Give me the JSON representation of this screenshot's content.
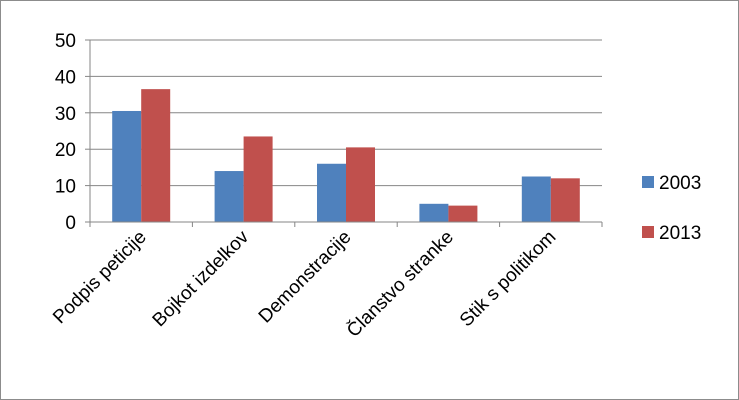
{
  "chart_data": {
    "type": "bar",
    "categories": [
      "Podpis peticije",
      "Bojkot izdelkov",
      "Demonstracije",
      "Članstvo stranke",
      "Stik s politikom"
    ],
    "series": [
      {
        "name": "2003",
        "color": "#4f81bd",
        "values": [
          30.5,
          14,
          16,
          5,
          12.5
        ]
      },
      {
        "name": "2013",
        "color": "#c0504d",
        "values": [
          36.5,
          23.5,
          20.5,
          4.5,
          12
        ]
      }
    ],
    "yticks": [
      0,
      10,
      20,
      30,
      40,
      50
    ],
    "ylim": [
      0,
      50
    ],
    "grid": true,
    "legend_position": "right",
    "title": "",
    "xlabel": "",
    "ylabel": ""
  }
}
